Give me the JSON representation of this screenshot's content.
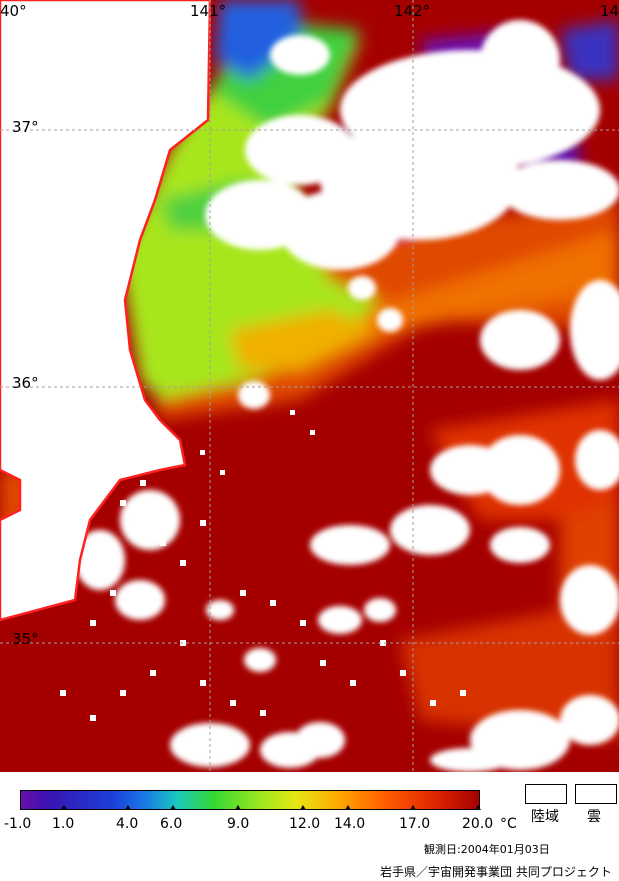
{
  "map": {
    "longitude_labels": [
      "40°",
      "141°",
      "142°",
      "14"
    ],
    "latitude_labels": [
      "37°",
      "36°",
      "35°"
    ],
    "colors": {
      "land": "#ffffff",
      "cloud": "#ffffff",
      "coastline": "#ff0000",
      "grid": "#a0a0a0",
      "warm": "#a50000",
      "cold": "#3a14b0"
    }
  },
  "colorbar": {
    "ticks": [
      "-1.0",
      "1.0",
      "4.0",
      "6.0",
      "9.0",
      "12.0",
      "14.0",
      "17.0",
      "20.0"
    ],
    "unit": "°C"
  },
  "legend": {
    "land_label": "陸域",
    "cloud_label": "雲"
  },
  "observation_date": "観測日:2004年01月03日",
  "credit": "岩手県／宇宙開発事業団 共同プロジェクト"
}
